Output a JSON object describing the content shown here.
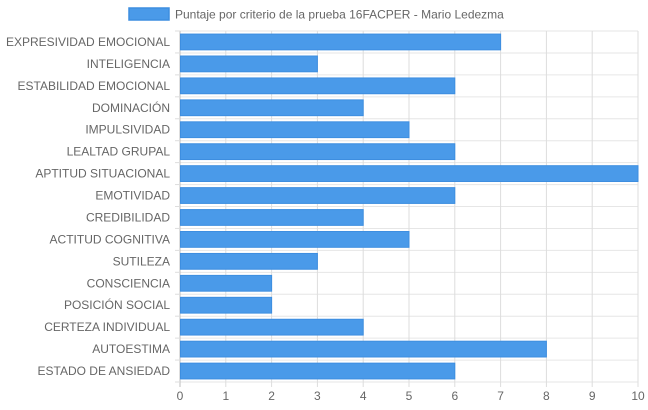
{
  "chart_data": {
    "type": "bar",
    "orientation": "horizontal",
    "categories": [
      "EXPRESIVIDAD EMOCIONAL",
      "INTELIGENCIA",
      "ESTABILIDAD EMOCIONAL",
      "DOMINACIÓN",
      "IMPULSIVIDAD",
      "LEALTAD GRUPAL",
      "APTITUD SITUACIONAL",
      "EMOTIVIDAD",
      "CREDIBILIDAD",
      "ACTITUD COGNITIVA",
      "SUTILEZA",
      "CONSCIENCIA",
      "POSICIÓN SOCIAL",
      "CERTEZA INDIVIDUAL",
      "AUTOESTIMA",
      "ESTADO DE ANSIEDAD"
    ],
    "series": [
      {
        "name": "Puntaje por criterio de la prueba 16FACPER - Mario Ledezma",
        "values": [
          7,
          3,
          6,
          4,
          5,
          6,
          10,
          6,
          4,
          5,
          3,
          2,
          2,
          4,
          8,
          6
        ],
        "color": "#4a9ae9",
        "border_color": "#3d8ee0"
      }
    ],
    "x_ticks": [
      "0",
      "1",
      "2",
      "3",
      "4",
      "5",
      "6",
      "7",
      "8",
      "9",
      "10"
    ],
    "xlim": [
      0,
      10
    ],
    "grid": true,
    "legend_position": "top-center"
  }
}
